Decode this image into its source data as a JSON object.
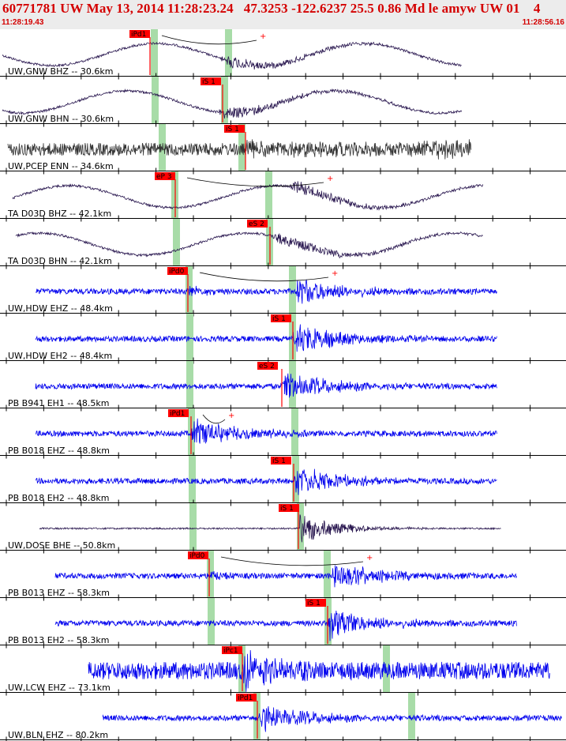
{
  "header": {
    "title": "60771781 UW May 13, 2014 11:28:23.24   47.3253 -122.6237 25.5 0.86 Md le amyw UW 01    4",
    "time_start": "11:28:19.43",
    "time_end": "11:28:56.16"
  },
  "colors": {
    "header_bg": "#ececec",
    "title": "#d40000",
    "pick_box": "#ff0000",
    "window_band": "#a8dca8",
    "trace_dark": "#2a1850",
    "trace_gray": "#333333",
    "trace_blue": "#0000ee"
  },
  "traces": [
    {
      "label": "UW,GNW BHZ -- 30.6km",
      "style": "lowfreq_dark",
      "pick": "iPd1"
    },
    {
      "label": "UW,GNW BHN -- 30.6km",
      "style": "lowfreq_dark",
      "pick": "iS 1"
    },
    {
      "label": "UW,PCEP ENN -- 34.6km",
      "style": "noise_gray",
      "pick": "iS 1"
    },
    {
      "label": "TA D03D BHZ -- 42.1km",
      "style": "lowfreq_dark",
      "pick": "eP 3"
    },
    {
      "label": "TA D03D BHN -- 42.1km",
      "style": "lowfreq_dark",
      "pick": "eS 2"
    },
    {
      "label": "UW,HDW EHZ -- 48.4km",
      "style": "blue",
      "pick": "iPd0"
    },
    {
      "label": "UW,HDW EH2 -- 48.4km",
      "style": "blue",
      "pick": "iS 1"
    },
    {
      "label": "PB B941 EH1 -- 48.5km",
      "style": "blue",
      "pick": "eS 2"
    },
    {
      "label": "PB B018 EHZ -- 48.8km",
      "style": "blue",
      "pick": "iPd1"
    },
    {
      "label": "PB B018 EH2 -- 48.8km",
      "style": "blue",
      "pick": "iS 1"
    },
    {
      "label": "UW,DOSE BHE -- 50.8km",
      "style": "dark",
      "pick": "iS 1"
    },
    {
      "label": "PB B013 EHZ -- 58.3km",
      "style": "blue",
      "pick": "iPd0"
    },
    {
      "label": "PB B013 EH2 -- 58.3km",
      "style": "blue",
      "pick": "iS 1"
    },
    {
      "label": "UW,LCW EHZ -- 73.1km",
      "style": "blue_noisy",
      "pick": "iPc1"
    },
    {
      "label": "UW,BLN EHZ -- 80.2km",
      "style": "blue",
      "pick": "iPd1"
    }
  ]
}
